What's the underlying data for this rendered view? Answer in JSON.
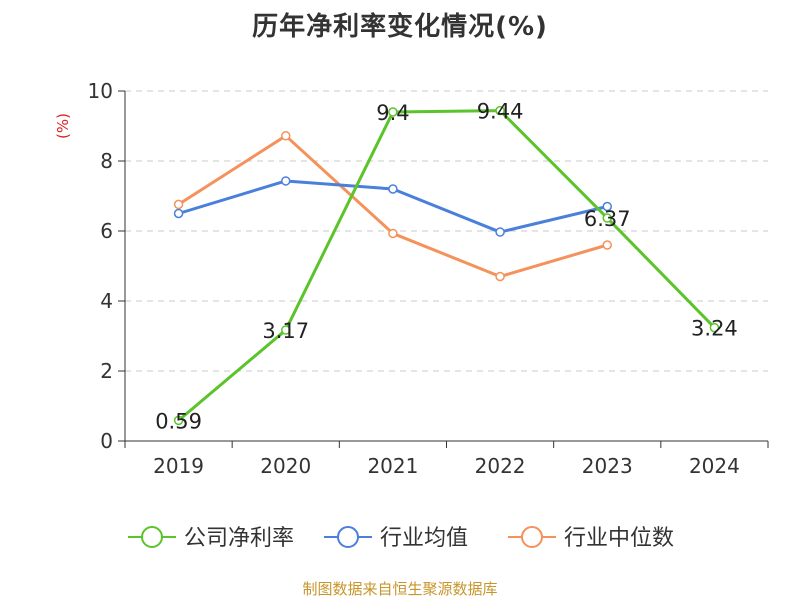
{
  "chart_data": {
    "type": "line",
    "title": "历年净利率变化情况(%)",
    "ylabel": "(%)",
    "xlabel": "",
    "categories": [
      "2019",
      "2020",
      "2021",
      "2022",
      "2023",
      "2024"
    ],
    "ylim": [
      0,
      10
    ],
    "yticks": [
      0,
      2,
      4,
      6,
      8,
      10
    ],
    "grid": true,
    "legend_position": "bottom",
    "series": [
      {
        "name": "公司净利率",
        "color": "#5ac42a",
        "values": [
          0.59,
          3.17,
          9.4,
          9.44,
          6.37,
          3.24
        ],
        "labels": [
          "0.59",
          "3.17",
          "9.4",
          "9.44",
          "6.37",
          "3.24"
        ]
      },
      {
        "name": "行业均值",
        "color": "#4a7fdc",
        "values": [
          6.5,
          7.43,
          7.2,
          5.97,
          6.7,
          null
        ],
        "labels": null
      },
      {
        "name": "行业中位数",
        "color": "#f5915a",
        "values": [
          6.76,
          8.72,
          5.93,
          4.7,
          5.6,
          null
        ],
        "labels": null
      }
    ]
  },
  "footer": "制图数据来自恒生聚源数据库"
}
